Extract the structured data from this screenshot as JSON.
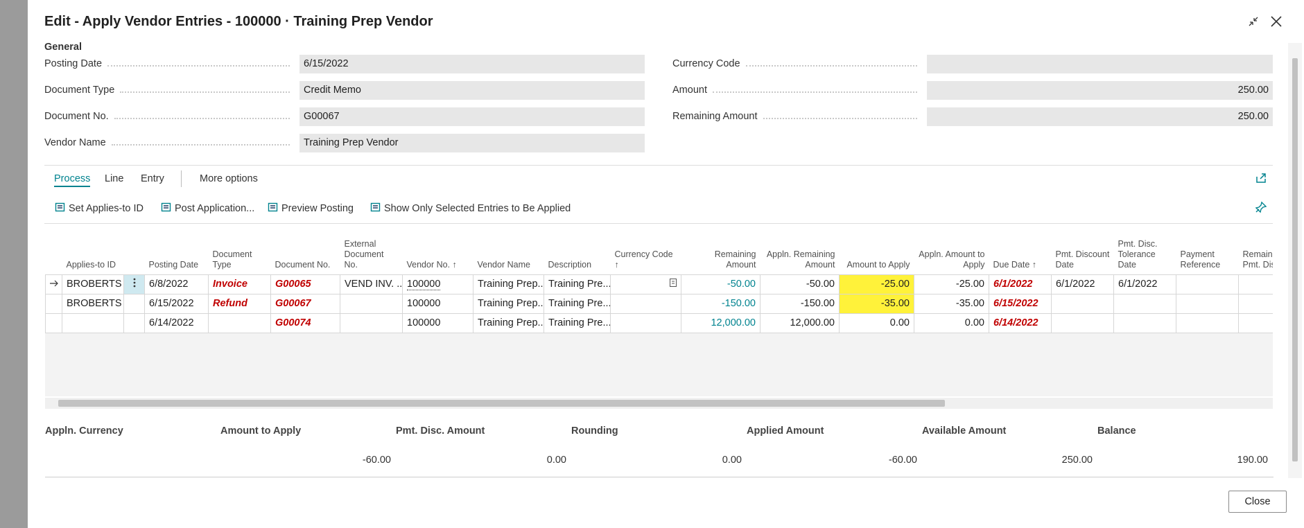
{
  "dialog": {
    "title": "Edit - Apply Vendor Entries - 100000 · Training Prep Vendor"
  },
  "general": {
    "heading": "General",
    "left": [
      {
        "label": "Posting Date",
        "value": "6/15/2022"
      },
      {
        "label": "Document Type",
        "value": "Credit Memo"
      },
      {
        "label": "Document No.",
        "value": "G00067"
      },
      {
        "label": "Vendor Name",
        "value": "Training Prep Vendor"
      }
    ],
    "right": [
      {
        "label": "Currency Code",
        "value": null
      },
      {
        "label": "Amount",
        "value": "250.00"
      },
      {
        "label": "Remaining Amount",
        "value": "250.00"
      }
    ]
  },
  "tabs": [
    "Process",
    "Line",
    "Entry",
    "More options"
  ],
  "actions": [
    "Set Applies-to ID",
    "Post Application...",
    "Preview Posting",
    "Show Only Selected Entries to Be Applied"
  ],
  "table": {
    "columns": [
      "Applies-to ID",
      "Posting Date",
      "Document Type",
      "Document No.",
      "External Document No.",
      "Vendor No.",
      "Vendor Name",
      "Description",
      "Currency Code",
      "Remaining Amount",
      "Appln. Remaining Amount",
      "Amount to Apply",
      "Appln. Amount to Apply",
      "Due Date",
      "Pmt. Discount Date",
      "Pmt. Disc. Tolerance Date",
      "Payment Reference",
      "Remaining Pmt. Disc."
    ],
    "rows": [
      [
        "BROBERTS",
        "6/8/2022",
        "Invoice",
        "G00065",
        "VEND INV. ...",
        "100000",
        "Training Prep...",
        "Training Pre...",
        null,
        "-50.00",
        "-50.00",
        "-25.00",
        "-25.00",
        "6/1/2022",
        "6/1/2022",
        "6/1/2022",
        null,
        null
      ],
      [
        "BROBERTS",
        "6/15/2022",
        "Refund",
        "G00067",
        null,
        "100000",
        "Training Prep...",
        "Training Pre...",
        null,
        "-150.00",
        "-150.00",
        "-35.00",
        "-35.00",
        "6/15/2022",
        null,
        null,
        null,
        null
      ],
      [
        null,
        "6/14/2022",
        null,
        "G00074",
        null,
        "100000",
        "Training Prep...",
        "Training Pre...",
        null,
        "12,000.00",
        "12,000.00",
        "0.00",
        "0.00",
        "6/14/2022",
        null,
        null,
        null,
        null
      ]
    ]
  },
  "totals": {
    "labels": [
      "Appln. Currency",
      "Amount to Apply",
      "Pmt. Disc. Amount",
      "Rounding",
      "Applied Amount",
      "Available Amount",
      "Balance"
    ],
    "values": [
      null,
      "-60.00",
      "0.00",
      "0.00",
      "-60.00",
      "250.00",
      "190.00"
    ]
  },
  "close_button": "Close"
}
